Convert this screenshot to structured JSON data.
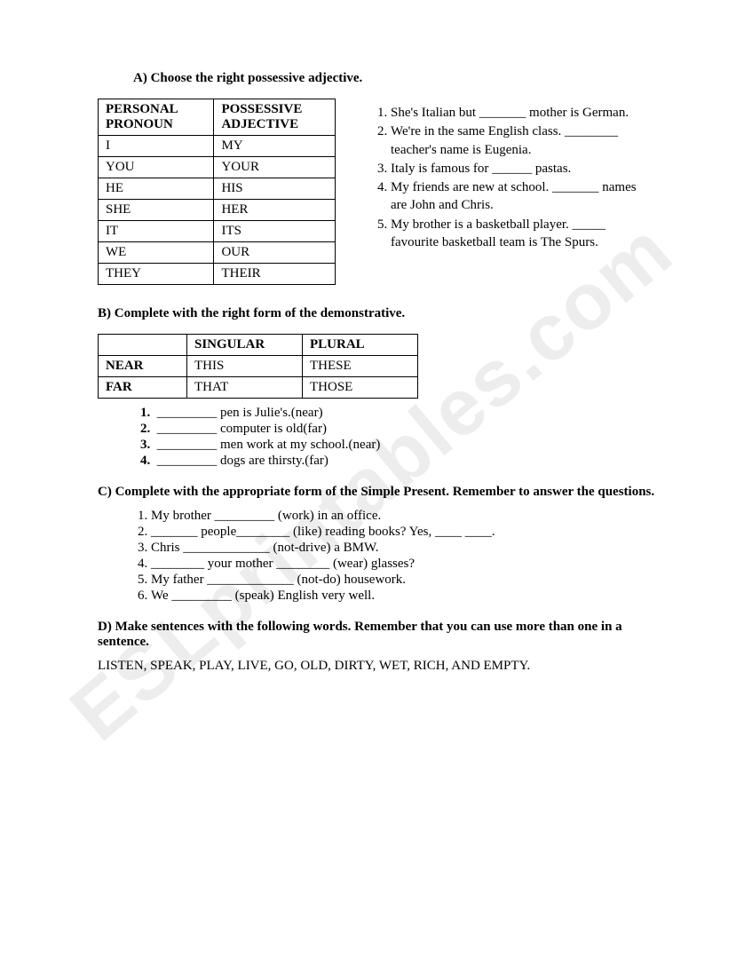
{
  "watermark": "ESLprintables.com",
  "sectionA": {
    "heading": "A)  Choose the right possessive adjective.",
    "table": {
      "headers": [
        "PERSONAL PRONOUN",
        "POSSESSIVE ADJECTIVE"
      ],
      "rows": [
        [
          "I",
          "MY"
        ],
        [
          "YOU",
          "YOUR"
        ],
        [
          "HE",
          "HIS"
        ],
        [
          "SHE",
          "HER"
        ],
        [
          "IT",
          "ITS"
        ],
        [
          "WE",
          "OUR"
        ],
        [
          " THEY",
          "THEIR"
        ]
      ]
    },
    "questions": [
      "She's Italian but _______ mother is German.",
      "We're in the same English class. ________ teacher's name is Eugenia.",
      "Italy is famous for ______ pastas.",
      "My friends are new at school. _______ names are John and Chris.",
      "My brother is a basketball player. _____ favourite basketball team is The Spurs."
    ]
  },
  "sectionB": {
    "heading": "B) Complete with the right form of the demonstrative.",
    "table": {
      "headers": [
        "",
        "SINGULAR",
        "PLURAL"
      ],
      "rows": [
        [
          "NEAR",
          "THIS",
          "THESE"
        ],
        [
          "FAR",
          "THAT",
          "THOSE"
        ]
      ]
    },
    "questions": [
      "_________ pen is Julie's.(near)",
      "_________ computer is old(far)",
      "_________ men work at my school.(near)",
      "_________ dogs are thirsty.(far)"
    ]
  },
  "sectionC": {
    "heading": "C) Complete with the appropriate form of the Simple Present. Remember to answer the questions.",
    "questions": [
      "My brother _________ (work) in an office.",
      "_______ people________ (like) reading books? Yes, ____   ____.",
      "Chris _____________ (not-drive) a BMW.",
      "________ your mother ________ (wear) glasses?",
      "My father _____________ (not-do) housework.",
      "We _________ (speak) English very well."
    ]
  },
  "sectionD": {
    "heading": "D) Make sentences with the following words. Remember that you can use more than one in a sentence.",
    "words": "LISTEN, SPEAK, PLAY, LIVE, GO, OLD, DIRTY, WET, RICH, AND EMPTY."
  }
}
